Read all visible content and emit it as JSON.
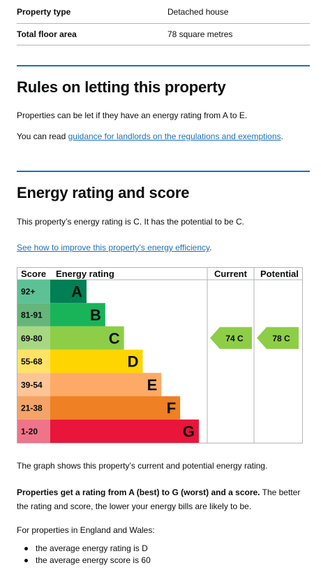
{
  "summary": [
    {
      "key": "Property type",
      "value": "Detached house"
    },
    {
      "key": "Total floor area",
      "value": "78 square metres"
    }
  ],
  "letting": {
    "heading": "Rules on letting this property",
    "p1": "Properties can be let if they have an energy rating from A to E.",
    "p2_prefix": "You can read ",
    "p2_link": "guidance for landlords on the regulations and exemptions",
    "p2_suffix": "."
  },
  "energy": {
    "heading": "Energy rating and score",
    "p1": "This property’s energy rating is C. It has the potential to be C.",
    "improve_link": "See how to improve this property’s energy efficiency",
    "improve_suffix": "."
  },
  "chart_data": {
    "type": "bar",
    "headers": {
      "score": "Score",
      "rating": "Energy rating",
      "current": "Current",
      "potential": "Potential"
    },
    "bands": [
      {
        "letter": "A",
        "range": "92+",
        "color": "#008054",
        "range_color": "#5cc295"
      },
      {
        "letter": "B",
        "range": "81-91",
        "color": "#19b459",
        "range_color": "#66b57b"
      },
      {
        "letter": "C",
        "range": "69-80",
        "color": "#8dce46",
        "range_color": "#a8d783"
      },
      {
        "letter": "D",
        "range": "55-68",
        "color": "#ffd500",
        "range_color": "#ffe266"
      },
      {
        "letter": "E",
        "range": "39-54",
        "color": "#fcaa65",
        "range_color": "#fdc496"
      },
      {
        "letter": "F",
        "range": "21-38",
        "color": "#ef8023",
        "range_color": "#f3a466"
      },
      {
        "letter": "G",
        "range": "1-20",
        "color": "#e9153b",
        "range_color": "#f07489"
      }
    ],
    "current": {
      "score": 74,
      "band": "C",
      "label": "74 C"
    },
    "potential": {
      "score": 78,
      "band": "C",
      "label": "78 C"
    }
  },
  "notes": {
    "graph_note": "The graph shows this property’s current and potential energy rating.",
    "bold": "Properties get a rating from A (best) to G (worst) and a score.",
    "rest": " The better the rating and score, the lower your energy bills are likely to be.",
    "england_wales": "For properties in England and Wales:",
    "bullets": [
      "the average energy rating is D",
      "the average energy score is 60"
    ]
  }
}
